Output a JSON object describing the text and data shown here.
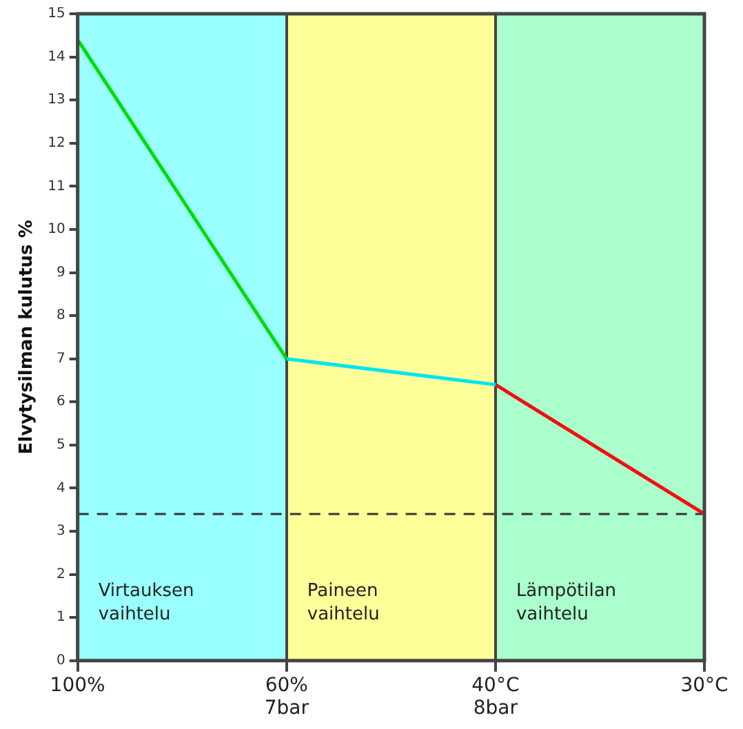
{
  "chart_data": {
    "type": "line",
    "ylabel": "Elvytysilman kulutus %",
    "categories": [
      "100%",
      "60%\n7bar",
      "40°C\n8bar",
      "30°C"
    ],
    "series": [
      {
        "color": "#00dd00",
        "values": [
          14.4,
          7.0,
          null,
          null
        ]
      },
      {
        "color": "#00e5f0",
        "values": [
          null,
          7.0,
          6.4,
          null
        ]
      },
      {
        "color": "#f01010",
        "values": [
          null,
          null,
          6.4,
          3.4
        ]
      }
    ],
    "ylim": [
      0,
      15
    ],
    "yticks": [
      0,
      1,
      2,
      3,
      4,
      5,
      6,
      7,
      8,
      9,
      10,
      11,
      12,
      13,
      14,
      15
    ],
    "grid": "x",
    "legend": false,
    "marker": "none",
    "line_style": "solid",
    "bands": [
      {
        "axis": "x",
        "from": "100%",
        "to": "60%\n7bar",
        "label": "Virtauksen vaihtelu",
        "color": "#99ffff"
      },
      {
        "axis": "x",
        "from": "60%\n7bar",
        "to": "40°C\n8bar",
        "label": "Paineen vaihtelu",
        "color": "#ffff99"
      },
      {
        "axis": "x",
        "from": "40°C\n8bar",
        "to": "30°C",
        "label": "Lämpötilan vaihtelu",
        "color": "#aaffcc"
      }
    ],
    "ref_lines": [
      {
        "axis": "y",
        "value": 3.4,
        "color": "#333333",
        "line_style": "dashed"
      }
    ]
  }
}
